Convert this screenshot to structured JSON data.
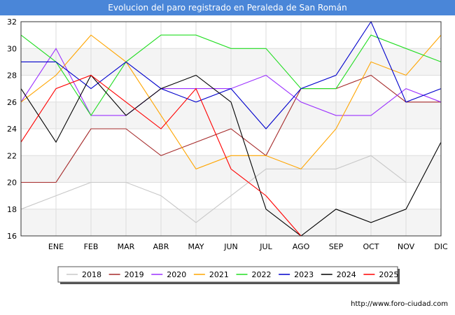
{
  "chart_data": {
    "type": "line",
    "title": "Evolucion del paro registrado en Peraleda de San Román",
    "categories": [
      "",
      "ENE",
      "FEB",
      "MAR",
      "ABR",
      "MAY",
      "JUN",
      "JUL",
      "AGO",
      "SEP",
      "OCT",
      "NOV",
      "DIC"
    ],
    "ylim": [
      16,
      32
    ],
    "yticks": [
      16,
      18,
      20,
      22,
      24,
      26,
      28,
      30,
      32
    ],
    "grid": true,
    "legend_position": "bottom",
    "series": [
      {
        "name": "2018",
        "color": "#c8c8c8",
        "values": [
          18,
          19,
          20,
          20,
          19,
          17,
          19,
          21,
          21,
          21,
          22,
          20,
          null
        ]
      },
      {
        "name": "2019",
        "color": "#a52a2a",
        "values": [
          20,
          20,
          24,
          24,
          22,
          23,
          24,
          22,
          27,
          27,
          28,
          26,
          26
        ]
      },
      {
        "name": "2020",
        "color": "#9b30ff",
        "values": [
          26,
          30,
          25,
          25,
          27,
          27,
          27,
          28,
          26,
          25,
          25,
          27,
          26
        ]
      },
      {
        "name": "2021",
        "color": "#ffa500",
        "values": [
          26,
          28,
          31,
          29,
          25,
          21,
          22,
          22,
          21,
          24,
          29,
          28,
          31
        ]
      },
      {
        "name": "2022",
        "color": "#22dd22",
        "values": [
          31,
          29,
          25,
          29,
          31,
          31,
          30,
          30,
          27,
          27,
          31,
          30,
          29
        ]
      },
      {
        "name": "2023",
        "color": "#0000cc",
        "values": [
          29,
          29,
          27,
          29,
          27,
          26,
          27,
          24,
          27,
          28,
          32,
          26,
          27
        ]
      },
      {
        "name": "2024",
        "color": "#000000",
        "values": [
          27,
          23,
          28,
          25,
          27,
          28,
          26,
          18,
          16,
          18,
          17,
          18,
          23
        ]
      },
      {
        "name": "2025",
        "color": "#ff0000",
        "values": [
          23,
          27,
          28,
          26,
          24,
          27,
          21,
          19,
          16,
          null,
          null,
          null,
          null
        ]
      }
    ]
  },
  "source_text": "http://www.foro-ciudad.com"
}
